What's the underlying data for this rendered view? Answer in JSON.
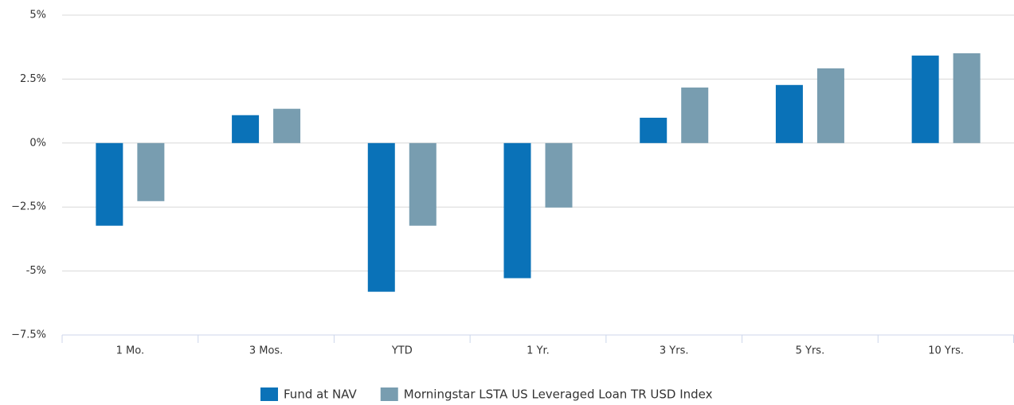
{
  "chart_data": {
    "type": "bar",
    "categories": [
      "1 Mo.",
      "3 Mos.",
      "YTD",
      "1 Yr.",
      "3 Yrs.",
      "5 Yrs.",
      "10 Yrs."
    ],
    "series": [
      {
        "name": "Fund at NAV",
        "color": "#0a72b8",
        "values": [
          -3.23,
          1.09,
          -5.81,
          -5.28,
          0.99,
          2.27,
          3.42
        ]
      },
      {
        "name": "Morningstar LSTA US Leveraged Loan TR USD Index",
        "color": "#789db0",
        "values": [
          -2.27,
          1.34,
          -3.23,
          -2.52,
          2.17,
          2.92,
          3.51
        ]
      }
    ],
    "ylim": [
      -7.5,
      5
    ],
    "yticks": [
      {
        "value": -7.5,
        "label": "−7.5%"
      },
      {
        "value": -5,
        "label": "-5%"
      },
      {
        "value": -2.5,
        "label": "−2.5%"
      },
      {
        "value": 0,
        "label": "0%"
      },
      {
        "value": 2.5,
        "label": "2.5%"
      },
      {
        "value": 5,
        "label": "5%"
      }
    ],
    "grid": true
  }
}
